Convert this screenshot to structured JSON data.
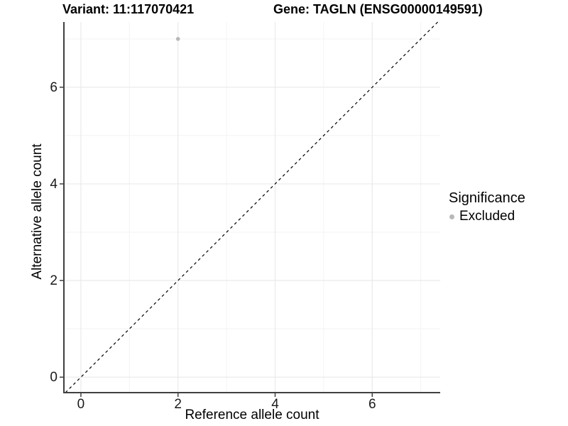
{
  "header": {
    "variant_title": "Variant: 11:117070421",
    "gene_title": "Gene: TAGLN (ENSG00000149591)"
  },
  "chart_data": {
    "type": "scatter",
    "xlabel": "Reference allele count",
    "ylabel": "Alternative allele count",
    "xlim": [
      -0.35,
      7.4
    ],
    "ylim": [
      -0.32,
      7.35
    ],
    "x_ticks": [
      0,
      2,
      4,
      6
    ],
    "y_ticks": [
      0,
      2,
      4,
      6
    ],
    "x_minor_ticks": [
      1,
      3,
      5,
      7
    ],
    "y_minor_ticks": [
      1,
      3,
      5,
      7
    ],
    "grid": "major+minor",
    "identity_line": {
      "type": "abline",
      "slope": 1,
      "intercept": 0,
      "style": "dashed",
      "color": "#000000"
    },
    "series": [
      {
        "name": "Excluded",
        "color": "#b8b8b8",
        "points": [
          {
            "x": 2,
            "y": 7
          }
        ]
      }
    ],
    "legend": {
      "position": "right",
      "title": "Significance",
      "entries": [
        {
          "label": "Excluded",
          "color": "#b8b8b8"
        }
      ]
    },
    "colors": {
      "grid_major": "#e8e8e8",
      "grid_minor": "#f3f3f3",
      "axis_line": "#404040",
      "tick_mark": "#404040",
      "point": "#b8b8b8",
      "panel_background": "#ffffff"
    }
  }
}
